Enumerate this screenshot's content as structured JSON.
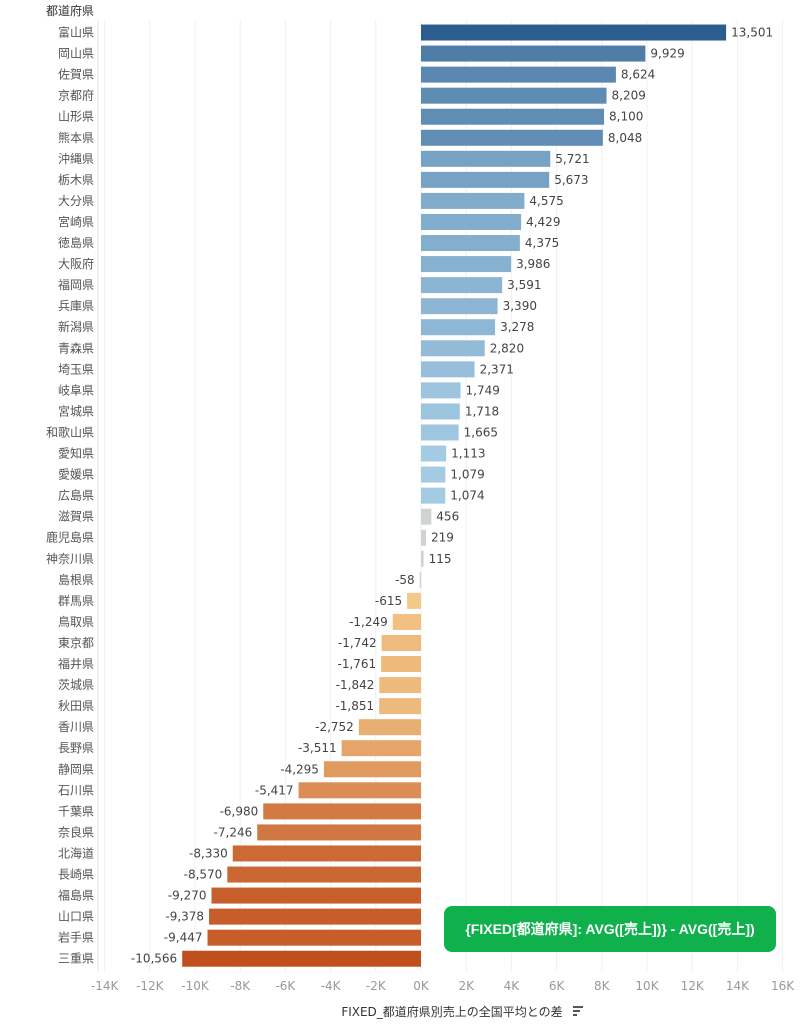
{
  "chart_data": {
    "type": "bar",
    "orientation": "horizontal",
    "row_header": "都道府県",
    "xlabel": "FIXED_都道府県別売上の全国平均との差",
    "xlim": [
      -15000,
      16500
    ],
    "ticks": [
      "-14K",
      "-12K",
      "-10K",
      "-8K",
      "-6K",
      "-4K",
      "-2K",
      "0K",
      "2K",
      "4K",
      "6K",
      "8K",
      "10K",
      "12K",
      "14K",
      "16K"
    ],
    "tick_values": [
      -14000,
      -12000,
      -10000,
      -8000,
      -6000,
      -4000,
      -2000,
      0,
      2000,
      4000,
      6000,
      8000,
      10000,
      12000,
      14000,
      16000
    ],
    "grid": true,
    "categories": [
      "富山県",
      "岡山県",
      "佐賀県",
      "京都府",
      "山形県",
      "熊本県",
      "沖縄県",
      "栃木県",
      "大分県",
      "宮崎県",
      "徳島県",
      "大阪府",
      "福岡県",
      "兵庫県",
      "新潟県",
      "青森県",
      "埼玉県",
      "岐阜県",
      "宮城県",
      "和歌山県",
      "愛知県",
      "愛媛県",
      "広島県",
      "滋賀県",
      "鹿児島県",
      "神奈川県",
      "島根県",
      "群馬県",
      "鳥取県",
      "東京都",
      "福井県",
      "茨城県",
      "秋田県",
      "香川県",
      "長野県",
      "静岡県",
      "石川県",
      "千葉県",
      "奈良県",
      "北海道",
      "長崎県",
      "福島県",
      "山口県",
      "岩手県",
      "三重県"
    ],
    "values": [
      13501,
      9929,
      8624,
      8209,
      8100,
      8048,
      5721,
      5673,
      4575,
      4429,
      4375,
      3986,
      3591,
      3390,
      3278,
      2820,
      2371,
      1749,
      1718,
      1665,
      1113,
      1079,
      1074,
      456,
      219,
      115,
      -58,
      -615,
      -1249,
      -1742,
      -1761,
      -1842,
      -1851,
      -2752,
      -3511,
      -4295,
      -5417,
      -6980,
      -7246,
      -8330,
      -8570,
      -9270,
      -9378,
      -9447,
      -10566
    ],
    "labels": [
      "13,501",
      "9,929",
      "8,624",
      "8,209",
      "8,100",
      "8,048",
      "5,721",
      "5,673",
      "4,575",
      "4,429",
      "4,375",
      "3,986",
      "3,591",
      "3,390",
      "3,278",
      "2,820",
      "2,371",
      "1,749",
      "1,718",
      "1,665",
      "1,113",
      "1,079",
      "1,074",
      "456",
      "219",
      "115",
      "-58",
      "-615",
      "-1,249",
      "-1,742",
      "-1,761",
      "-1,842",
      "-1,851",
      "-2,752",
      "-3,511",
      "-4,295",
      "-5,417",
      "-6,980",
      "-7,246",
      "-8,330",
      "-8,570",
      "-9,270",
      "-9,378",
      "-9,447",
      "-10,566"
    ],
    "colors": {
      "pos_max": "#2c5d8f",
      "pos_min": "#a9d0e8",
      "neutral": "#cfd3d3",
      "neg_min": "#f5c98a",
      "neg_max": "#c04f1e"
    }
  },
  "annotation": {
    "text": "{FIXED[都道府県]: AVG([売上])} - AVG([売上])"
  },
  "sort_icon": "sort-descending-icon"
}
